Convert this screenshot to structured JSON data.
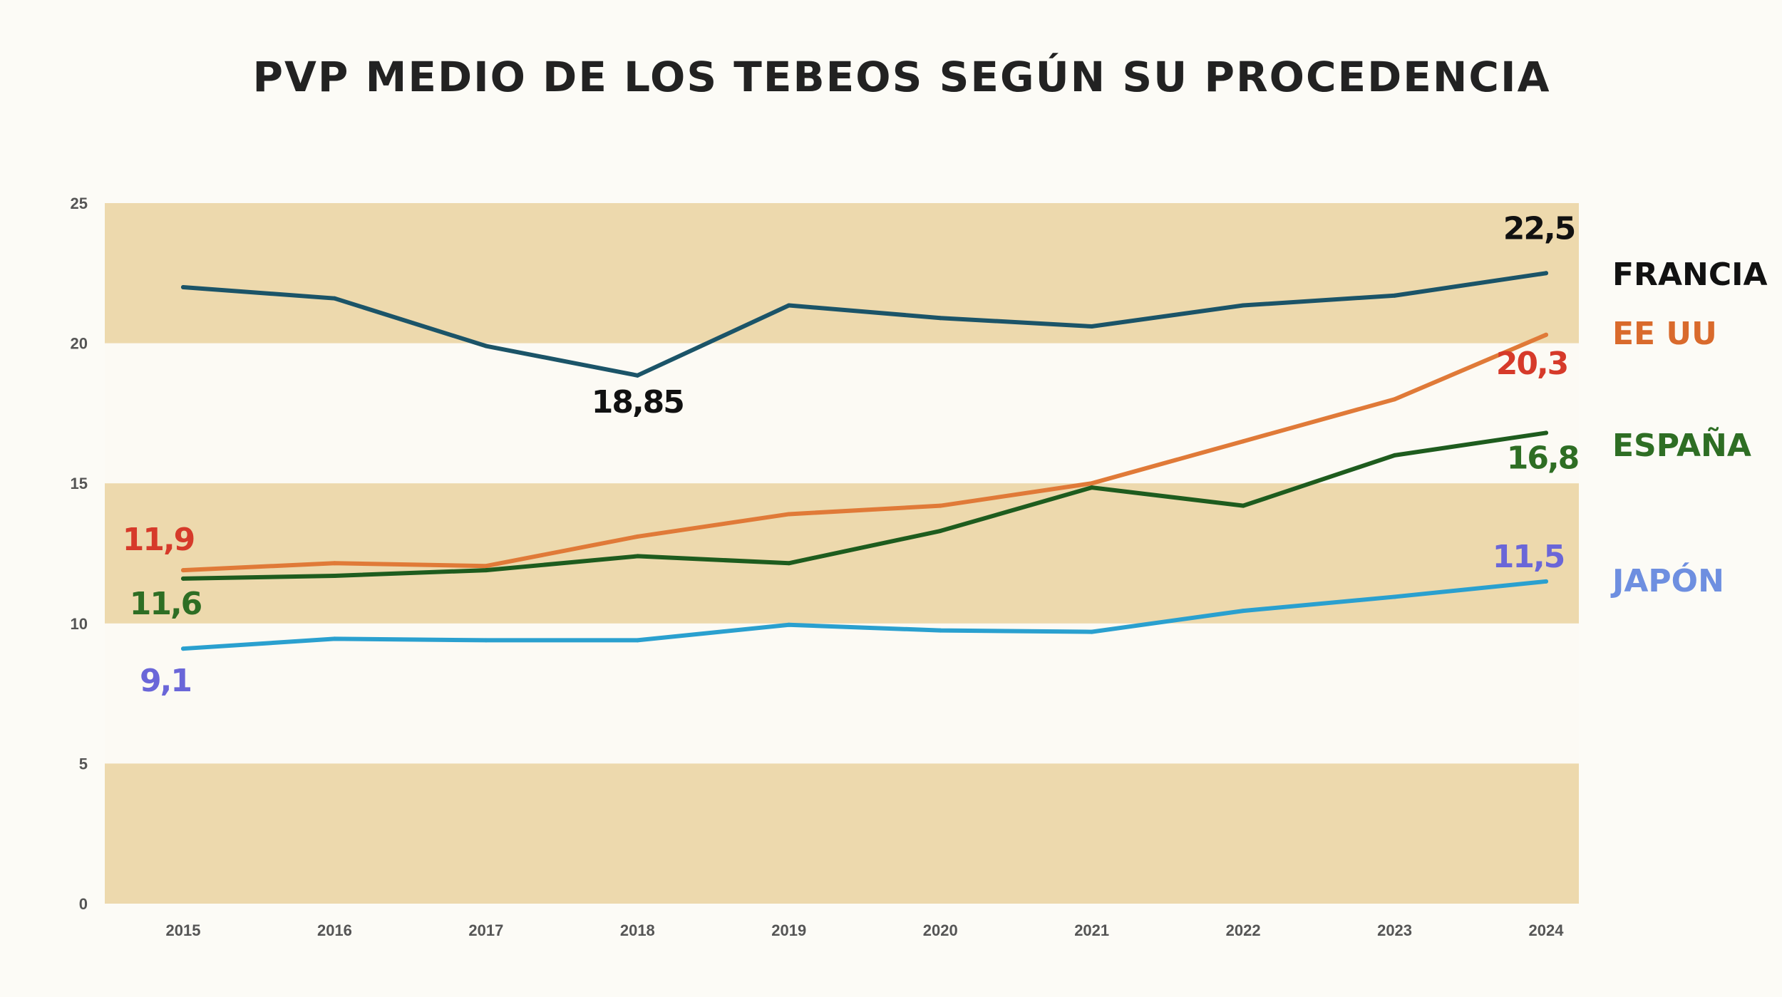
{
  "chart_data": {
    "type": "line",
    "title": "PVP MEDIO DE LOS TEBEOS SEGÚN SU PROCEDENCIA",
    "xlabel": "",
    "ylabel": "",
    "ylim": [
      0,
      25
    ],
    "yticks": [
      "0",
      "5",
      "10",
      "15",
      "20",
      "25"
    ],
    "categories": [
      "2015",
      "2016",
      "2017",
      "2018",
      "2019",
      "2020",
      "2021",
      "2022",
      "2023",
      "2024"
    ],
    "background_bands": [
      [
        0,
        5
      ],
      [
        10,
        15
      ],
      [
        20,
        25
      ]
    ],
    "band_color": "#edd9ad",
    "series": [
      {
        "name": "FRANCIA",
        "color": "#1b5468",
        "label_color": "#111111",
        "values": [
          22.0,
          21.6,
          19.9,
          18.85,
          21.35,
          20.9,
          20.6,
          21.35,
          21.7,
          22.5
        ]
      },
      {
        "name": "EE UU",
        "color": "#e07a38",
        "label_color": "#d63a2a",
        "values": [
          11.9,
          12.15,
          12.05,
          13.1,
          13.9,
          14.2,
          15.0,
          16.5,
          18.0,
          20.3
        ]
      },
      {
        "name": "ESPAÑA",
        "color": "#1e5c1e",
        "label_color": "#2e6e24",
        "values": [
          11.6,
          11.7,
          11.9,
          12.4,
          12.15,
          13.3,
          14.85,
          14.2,
          16.0,
          16.8
        ]
      },
      {
        "name": "JAPÓN",
        "color": "#2aa0cf",
        "label_color": "#6a66d8",
        "values": [
          9.1,
          9.45,
          9.4,
          9.4,
          9.95,
          9.75,
          9.7,
          10.45,
          10.95,
          11.5
        ]
      }
    ],
    "annotations": [
      {
        "text": "22,5",
        "color": "#111111"
      },
      {
        "text": "18,85",
        "color": "#111111"
      },
      {
        "text": "20,3",
        "color": "#d63a2a"
      },
      {
        "text": "11,9",
        "color": "#d63a2a"
      },
      {
        "text": "16,8",
        "color": "#2e6e24"
      },
      {
        "text": "11,6",
        "color": "#2e6e24"
      },
      {
        "text": "11,5",
        "color": "#6a66d8"
      },
      {
        "text": "9,1",
        "color": "#6a66d8"
      }
    ],
    "legend": {
      "placement": "right",
      "entries": [
        {
          "text": "FRANCIA",
          "color": "#111111"
        },
        {
          "text": "EE UU",
          "color": "#d96a2c"
        },
        {
          "text": "ESPAÑA",
          "color": "#2e6e24"
        },
        {
          "text": "JAPÓN",
          "color": "#6e8fe0"
        }
      ]
    },
    "grid": false
  }
}
